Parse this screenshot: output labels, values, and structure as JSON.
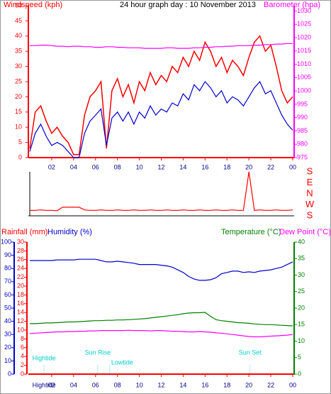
{
  "chart_data": [
    {
      "type": "line",
      "title": "24 hour graph day : 10 November 2013",
      "y_label": "Windspeed (kph)",
      "y2_label": "Barometer (hpa)",
      "axis_colors": {
        "y": "#ff0000",
        "y2": "#ff00ff"
      },
      "x": [
        0,
        0.5,
        1,
        1.5,
        2,
        2.5,
        3,
        3.5,
        4,
        4.5,
        5,
        5.5,
        6,
        6.5,
        7,
        7.5,
        8,
        8.5,
        9,
        9.5,
        10,
        10.5,
        11,
        11.5,
        12,
        12.5,
        13,
        13.5,
        14,
        14.5,
        15,
        15.5,
        16,
        16.5,
        17,
        17.5,
        18,
        18.5,
        19,
        19.5,
        20,
        20.5,
        21,
        21.5,
        22,
        22.5,
        23,
        23.5,
        24
      ],
      "xlim": [
        0,
        24
      ],
      "xticks": [
        {
          "value": 2,
          "label": "02"
        },
        {
          "value": 4,
          "label": "04"
        },
        {
          "value": 6,
          "label": "06"
        },
        {
          "value": 8,
          "label": "08"
        },
        10,
        12,
        14,
        16,
        18,
        20,
        22,
        {
          "value": 24,
          "label": "00"
        }
      ],
      "ylim": [
        0,
        50
      ],
      "yticks": [
        0,
        5,
        10,
        15,
        20,
        25,
        30,
        35,
        40,
        45,
        50
      ],
      "y2lim": [
        975,
        1032
      ],
      "y2ticks": [
        975,
        980,
        985,
        990,
        995,
        1000,
        1005,
        1010,
        1015,
        1020,
        1025,
        1030
      ],
      "series": [
        {
          "color": "#ff0000",
          "axis": "y",
          "values": [
            3,
            15,
            17,
            12,
            8,
            10,
            7,
            5,
            1,
            1,
            14,
            20,
            22,
            25,
            3,
            22,
            26,
            20,
            24,
            18,
            25,
            22,
            28,
            24,
            27,
            25,
            30,
            28,
            33,
            30,
            35,
            32,
            38,
            35,
            30,
            33,
            28,
            32,
            30,
            27,
            33,
            38,
            40,
            35,
            37,
            30,
            22,
            18,
            20
          ]
        },
        {
          "color": "#0000cc",
          "axis": "y",
          "values": [
            2,
            8,
            11,
            7,
            4,
            5,
            4,
            2,
            0,
            0,
            8,
            12,
            14,
            16,
            4,
            13,
            15,
            12,
            15,
            11,
            15,
            13,
            17,
            14,
            16,
            15,
            18,
            17,
            21,
            19,
            24,
            22,
            25,
            23,
            20,
            22,
            18,
            20,
            19,
            17,
            20,
            23,
            25,
            21,
            22,
            18,
            14,
            11,
            9
          ]
        },
        {
          "color": "#ff00ff",
          "axis": "y2",
          "values": [
            1017,
            1017,
            1017.2,
            1017.2,
            1017,
            1016.8,
            1016.8,
            1016.6,
            1016.8,
            1016.8,
            1016.6,
            1016.6,
            1016.4,
            1016.4,
            1016.6,
            1016.6,
            1016.4,
            1016.4,
            1016.2,
            1016.2,
            1016.2,
            1016,
            1016,
            1016,
            1016,
            1016.2,
            1016.2,
            1016,
            1016,
            1016,
            1016.2,
            1016.2,
            1016.4,
            1016.4,
            1016.6,
            1016.6,
            1016.8,
            1016.8,
            1017,
            1017,
            1017,
            1017.2,
            1017.2,
            1017.4,
            1017.4,
            1017.6,
            1017.6,
            1017.8,
            1017.8
          ]
        }
      ]
    },
    {
      "type": "line",
      "axis_colors": {
        "y": "#ff0000"
      },
      "x": [
        0,
        0.5,
        1,
        1.5,
        2,
        2.5,
        3,
        3.5,
        4,
        4.5,
        5,
        5.5,
        6,
        6.5,
        7,
        7.5,
        8,
        8.5,
        9,
        9.5,
        10,
        10.5,
        11,
        11.5,
        12,
        12.5,
        13,
        13.5,
        14,
        14.5,
        15,
        15.5,
        16,
        16.5,
        17,
        17.5,
        18,
        18.5,
        19,
        19.5,
        20,
        20.5,
        21,
        21.5,
        22,
        22.5,
        23,
        23.5,
        24
      ],
      "xlim": [
        0,
        24
      ],
      "ylim": [
        0,
        360
      ],
      "yticks": [
        {
          "value": 0,
          "label": "S"
        },
        {
          "value": 90,
          "label": "W"
        },
        {
          "value": 180,
          "label": "N"
        },
        {
          "value": 270,
          "label": "E"
        },
        {
          "value": 360,
          "label": "S"
        }
      ],
      "series": [
        {
          "color": "#ff0000",
          "axis": "y",
          "values": [
            45,
            45,
            48,
            45,
            45,
            42,
            70,
            70,
            70,
            70,
            48,
            45,
            45,
            48,
            45,
            45,
            48,
            45,
            45,
            48,
            45,
            45,
            48,
            45,
            45,
            48,
            45,
            45,
            48,
            45,
            45,
            48,
            45,
            45,
            48,
            45,
            45,
            48,
            45,
            45,
            360,
            45,
            48,
            45,
            45,
            48,
            45,
            45,
            48
          ]
        }
      ]
    },
    {
      "type": "line",
      "y3_label": "Rainfall (mm)",
      "y_label": "Humidity (%)",
      "y2_label": "Temperature (°C)",
      "y4_label": "Dew Point (°C)",
      "axis_colors": {
        "y": "#0000cc",
        "y2": "#008000",
        "y3": "#ff0000",
        "y4": "#ff00ff"
      },
      "x": [
        0,
        0.5,
        1,
        1.5,
        2,
        2.5,
        3,
        3.5,
        4,
        4.5,
        5,
        5.5,
        6,
        6.5,
        7,
        7.5,
        8,
        8.5,
        9,
        9.5,
        10,
        10.5,
        11,
        11.5,
        12,
        12.5,
        13,
        13.5,
        14,
        14.5,
        15,
        15.5,
        16,
        16.5,
        17,
        17.5,
        18,
        18.5,
        19,
        19.5,
        20,
        20.5,
        21,
        21.5,
        22,
        22.5,
        23,
        23.5,
        24
      ],
      "xlim": [
        0,
        24
      ],
      "xticks": [
        {
          "value": 2,
          "label": "02"
        },
        {
          "value": 4,
          "label": "04"
        },
        {
          "value": 6,
          "label": "06"
        },
        {
          "value": 8,
          "label": "08"
        },
        10,
        12,
        14,
        16,
        18,
        20,
        22,
        {
          "value": 24,
          "label": "00"
        }
      ],
      "ylim": [
        0,
        100
      ],
      "yticks": [
        0,
        10,
        20,
        30,
        40,
        50,
        60,
        70,
        80,
        90,
        100
      ],
      "y3lim": [
        0,
        30
      ],
      "y3ticks": [
        0,
        2,
        4,
        6,
        8,
        10,
        12,
        14,
        16,
        18,
        20,
        22,
        24,
        26,
        28,
        30
      ],
      "y2lim": [
        0,
        40
      ],
      "y2ticks": [
        0,
        5,
        10,
        15,
        20,
        25,
        30,
        35,
        40
      ],
      "series": [
        {
          "color": "#ff0000",
          "axis": "y3",
          "x": [
            0,
            24
          ],
          "values": [
            0,
            0
          ]
        },
        {
          "color": "#0000cc",
          "axis": "y",
          "values": [
            86,
            86,
            86,
            86,
            86,
            86.5,
            86.5,
            86.5,
            86.5,
            87,
            87,
            87,
            87,
            86,
            85,
            85,
            85.5,
            85,
            84.5,
            84,
            83,
            83,
            83,
            83,
            82.5,
            82,
            81,
            79,
            77,
            74,
            72,
            71,
            71,
            71.5,
            73,
            76,
            77,
            78,
            78,
            77,
            77.5,
            77,
            78,
            78.5,
            79,
            80,
            81,
            83,
            85
          ]
        },
        {
          "color": "#008000",
          "axis": "y2",
          "values": [
            15.3,
            15.3,
            15.4,
            15.5,
            15.5,
            15.6,
            15.7,
            15.8,
            15.8,
            15.9,
            16,
            16.1,
            16.2,
            16.2,
            16.3,
            16.3,
            16.4,
            16.4,
            16.5,
            16.6,
            16.7,
            16.8,
            17,
            17.2,
            17.4,
            17.6,
            17.8,
            18,
            18.3,
            18.5,
            18.6,
            18.6,
            18.7,
            17.5,
            16.5,
            16.2,
            16,
            15.8,
            15.6,
            15.5,
            15.4,
            15.2,
            15.1,
            15,
            15,
            14.9,
            14.8,
            14.7,
            14.6
          ]
        },
        {
          "color": "#ff00ff",
          "axis": "y2",
          "values": [
            12.3,
            12.4,
            12.5,
            12.6,
            12.7,
            12.8,
            12.8,
            12.9,
            12.9,
            13,
            13,
            13.1,
            13.1,
            13.2,
            13.2,
            13.2,
            13.2,
            13.2,
            13.3,
            13.2,
            13.2,
            13.2,
            13.1,
            13.2,
            13.2,
            13.1,
            13,
            13,
            12.9,
            12.8,
            12.8,
            12.9,
            12.8,
            12.7,
            12.5,
            12.4,
            12.2,
            12,
            11.8,
            11.6,
            11.4,
            11.3,
            11.3,
            11.4,
            11.5,
            11.6,
            11.7,
            11.8,
            12
          ]
        }
      ],
      "annotation_color": "#00cccc",
      "annotations": [
        {
          "label": "Hightide",
          "x": 1.3
        },
        {
          "label": "Sun Rise",
          "x": 6.2
        },
        {
          "label": "Lowtide",
          "x": 7.3
        },
        {
          "label": "Sun Set",
          "x": 20.1
        }
      ],
      "x_markers": [
        {
          "label": "Hightide",
          "x": 1.3
        }
      ]
    }
  ]
}
